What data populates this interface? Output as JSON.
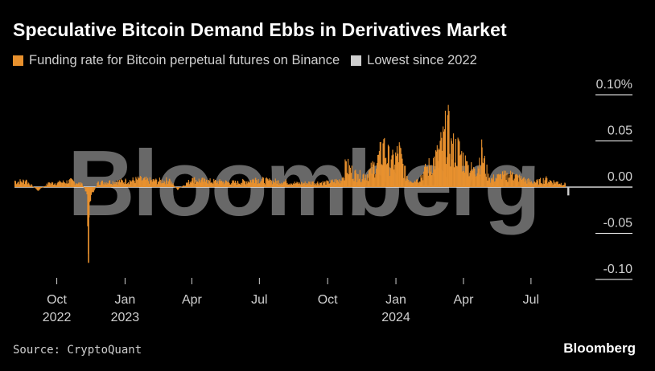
{
  "header": {
    "title": "Speculative Bitcoin Demand Ebbs in Derivatives Market"
  },
  "footer": {
    "source": "Source: CryptoQuant",
    "brand": "Bloomberg"
  },
  "watermark": "Bloomberg",
  "colors": {
    "background": "#000000",
    "funding": "#e8912e",
    "lowest": "#cfcfcf",
    "zero_line": "#ffffff",
    "gridline": "#ffffff"
  },
  "chart_data": {
    "type": "bar",
    "title": "Speculative Bitcoin Demand Ebbs in Derivatives Market",
    "xlabel": "",
    "ylabel": "",
    "ylim": [
      -0.1,
      0.1
    ],
    "y_unit": "%",
    "yticks": [
      {
        "value": 0.1,
        "label": "0.10%"
      },
      {
        "value": 0.05,
        "label": "0.05"
      },
      {
        "value": 0.0,
        "label": "0.00"
      },
      {
        "value": -0.05,
        "label": "-0.05"
      },
      {
        "value": -0.1,
        "label": "-0.10"
      }
    ],
    "x_range": [
      "2022-08-05",
      "2024-08-20"
    ],
    "xticks": [
      {
        "date": "2022-10-01",
        "label": "Oct",
        "year": "2022"
      },
      {
        "date": "2023-01-01",
        "label": "Jan",
        "year": "2023"
      },
      {
        "date": "2023-04-01",
        "label": "Apr",
        "year": ""
      },
      {
        "date": "2023-07-01",
        "label": "Jul",
        "year": ""
      },
      {
        "date": "2023-10-01",
        "label": "Oct",
        "year": ""
      },
      {
        "date": "2024-01-01",
        "label": "Jan",
        "year": "2024"
      },
      {
        "date": "2024-04-01",
        "label": "Apr",
        "year": ""
      },
      {
        "date": "2024-07-01",
        "label": "Jul",
        "year": ""
      }
    ],
    "legend_position": "top-left",
    "grid": "horizontal-right-only",
    "series": [
      {
        "name": "Funding rate for Bitcoin perpetual futures on Binance",
        "color": "#e8912e",
        "points": [
          [
            "2022-08-05",
            0.007
          ],
          [
            "2022-08-20",
            0.008
          ],
          [
            "2022-09-05",
            -0.004
          ],
          [
            "2022-09-20",
            0.005
          ],
          [
            "2022-10-05",
            0.006
          ],
          [
            "2022-10-20",
            0.008
          ],
          [
            "2022-11-03",
            0.004
          ],
          [
            "2022-11-10",
            -0.007
          ],
          [
            "2022-11-12",
            -0.082
          ],
          [
            "2022-11-14",
            -0.015
          ],
          [
            "2022-11-25",
            0.006
          ],
          [
            "2022-12-10",
            0.007
          ],
          [
            "2023-01-01",
            0.008
          ],
          [
            "2023-01-20",
            0.01
          ],
          [
            "2023-02-10",
            0.008
          ],
          [
            "2023-03-01",
            0.009
          ],
          [
            "2023-03-12",
            -0.003
          ],
          [
            "2023-04-01",
            0.01
          ],
          [
            "2023-04-20",
            0.008
          ],
          [
            "2023-05-10",
            0.007
          ],
          [
            "2023-06-01",
            0.006
          ],
          [
            "2023-06-25",
            0.01
          ],
          [
            "2023-07-15",
            0.008
          ],
          [
            "2023-08-05",
            0.007
          ],
          [
            "2023-08-20",
            0.005
          ],
          [
            "2023-09-10",
            0.006
          ],
          [
            "2023-10-01",
            0.006
          ],
          [
            "2023-10-20",
            0.01
          ],
          [
            "2023-10-25",
            0.028
          ],
          [
            "2023-11-10",
            0.014
          ],
          [
            "2023-11-25",
            0.018
          ],
          [
            "2023-12-08",
            0.035
          ],
          [
            "2023-12-15",
            0.052
          ],
          [
            "2023-12-25",
            0.03
          ],
          [
            "2024-01-05",
            0.045
          ],
          [
            "2024-01-15",
            0.012
          ],
          [
            "2024-01-28",
            0.008
          ],
          [
            "2024-02-10",
            0.022
          ],
          [
            "2024-02-25",
            0.04
          ],
          [
            "2024-03-05",
            0.06
          ],
          [
            "2024-03-10",
            0.078
          ],
          [
            "2024-03-15",
            0.05
          ],
          [
            "2024-03-25",
            0.048
          ],
          [
            "2024-04-05",
            0.028
          ],
          [
            "2024-04-15",
            0.02
          ],
          [
            "2024-04-25",
            0.043
          ],
          [
            "2024-05-05",
            0.01
          ],
          [
            "2024-05-20",
            0.014
          ],
          [
            "2024-06-05",
            0.016
          ],
          [
            "2024-06-20",
            0.01
          ],
          [
            "2024-07-05",
            0.006
          ],
          [
            "2024-07-20",
            0.01
          ],
          [
            "2024-08-05",
            0.006
          ],
          [
            "2024-08-15",
            0.004
          ]
        ]
      },
      {
        "name": "Lowest since 2022",
        "color": "#cfcfcf",
        "points": [
          [
            "2024-08-19",
            -0.009
          ]
        ]
      }
    ]
  }
}
